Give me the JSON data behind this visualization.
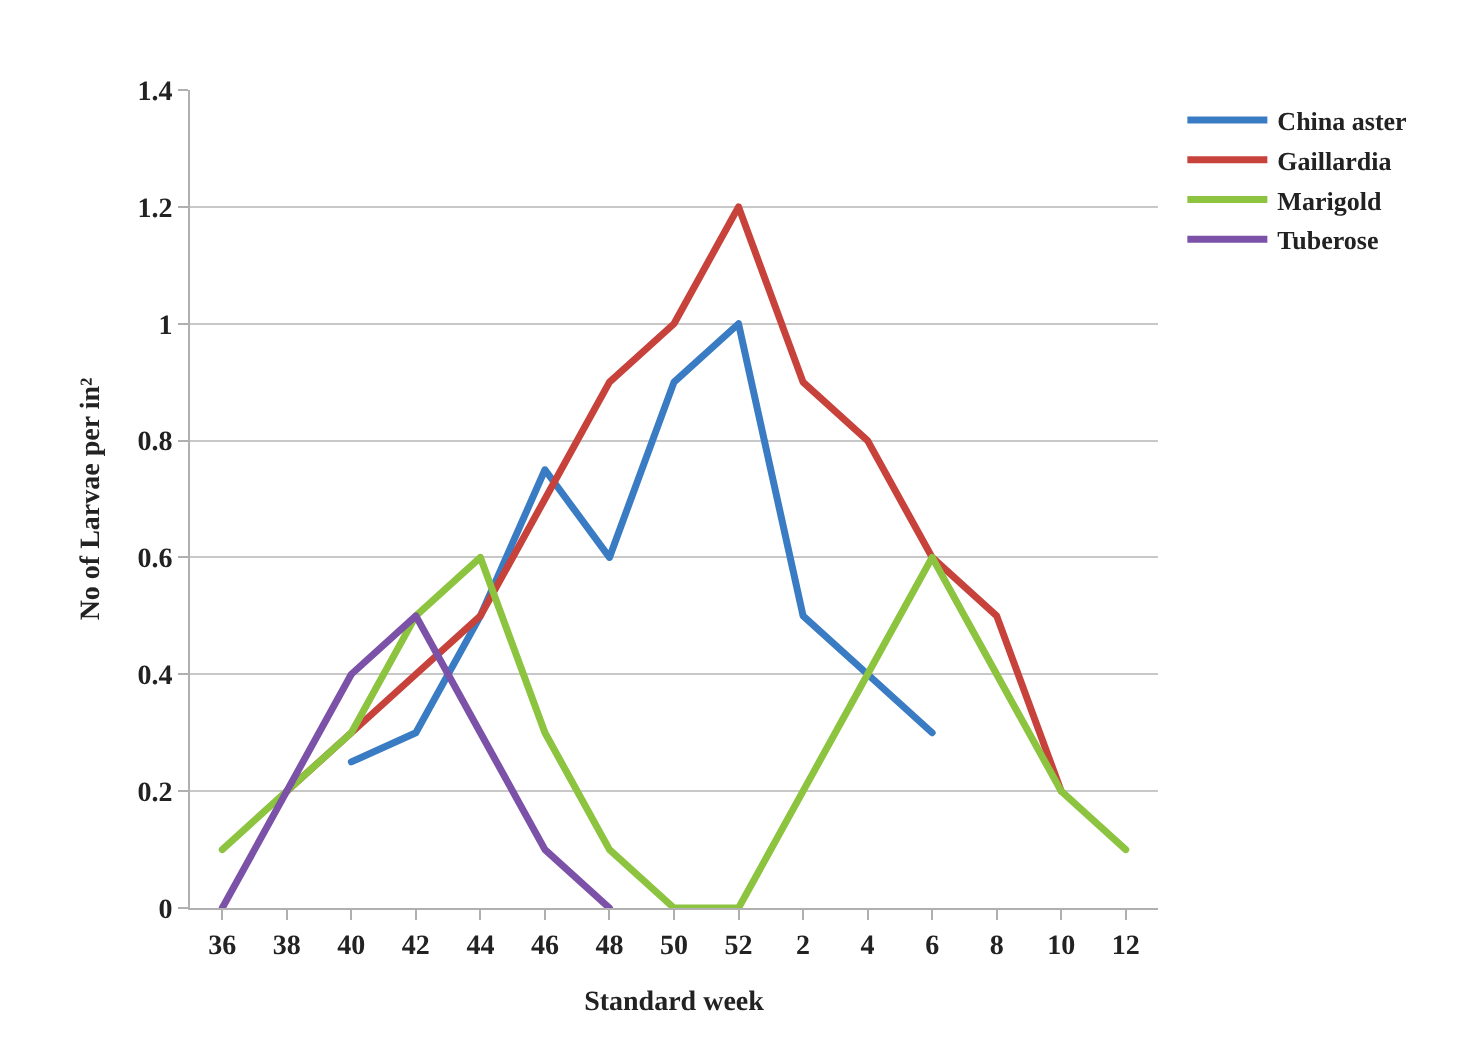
{
  "chart_data": {
    "type": "line",
    "xlabel": "Standard week",
    "ylabel": "No of Larvae per in²",
    "categories": [
      "36",
      "38",
      "40",
      "42",
      "44",
      "46",
      "48",
      "50",
      "52",
      "2",
      "4",
      "6",
      "8",
      "10",
      "12"
    ],
    "series": [
      {
        "name": "China aster",
        "color": "#3a7cc3",
        "values": [
          null,
          null,
          0.25,
          0.3,
          0.5,
          0.75,
          0.6,
          0.9,
          1.0,
          0.5,
          0.4,
          0.3,
          null,
          null,
          null
        ]
      },
      {
        "name": "Gaillardia",
        "color": "#c8423c",
        "values": [
          null,
          0.2,
          0.3,
          0.4,
          0.5,
          0.7,
          0.9,
          1.0,
          1.2,
          0.9,
          0.8,
          0.6,
          0.5,
          0.2,
          null
        ]
      },
      {
        "name": "Marigold",
        "color": "#8cc33f",
        "values": [
          0.1,
          0.2,
          0.3,
          0.5,
          0.6,
          0.3,
          0.1,
          0,
          0,
          0.2,
          0.4,
          0.6,
          0.4,
          0.2,
          0.1
        ]
      },
      {
        "name": "Tuberose",
        "color": "#7b52a8",
        "values": [
          0,
          0.2,
          0.4,
          0.5,
          0.3,
          0.1,
          0,
          null,
          null,
          null,
          null,
          null,
          null,
          null,
          null
        ]
      }
    ],
    "ylim": [
      0,
      1.4
    ],
    "yticks": [
      0,
      0.2,
      0.4,
      0.6,
      0.8,
      1,
      1.2,
      1.4
    ],
    "grid": "y",
    "legend": "top right",
    "marker": "none",
    "line_style": "solid"
  }
}
